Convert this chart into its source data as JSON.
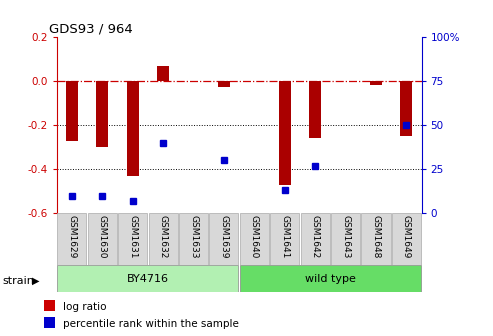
{
  "title": "GDS93 / 964",
  "samples": [
    "GSM1629",
    "GSM1630",
    "GSM1631",
    "GSM1632",
    "GSM1633",
    "GSM1639",
    "GSM1640",
    "GSM1641",
    "GSM1642",
    "GSM1643",
    "GSM1648",
    "GSM1649"
  ],
  "log_ratio": [
    -0.27,
    -0.3,
    -0.43,
    0.07,
    0.0,
    -0.027,
    0.0,
    -0.47,
    -0.26,
    0.0,
    -0.02,
    -0.25
  ],
  "percentile_rank": [
    10,
    10,
    7,
    40,
    0,
    30,
    0,
    13,
    27,
    0,
    0,
    50
  ],
  "strain_groups": [
    {
      "label": "BY4716",
      "start": 0,
      "end": 5,
      "color": "#b2f0b2"
    },
    {
      "label": "wild type",
      "start": 6,
      "end": 11,
      "color": "#66dd66"
    }
  ],
  "bar_color": "#aa0000",
  "dot_color": "#0000cc",
  "ylim_left": [
    -0.6,
    0.2
  ],
  "ylim_right": [
    0,
    100
  ],
  "yticks_left": [
    -0.6,
    -0.4,
    -0.2,
    0.0,
    0.2
  ],
  "yticks_right": [
    0,
    25,
    50,
    75,
    100
  ],
  "ytick_right_labels": [
    "0",
    "25",
    "50",
    "75",
    "100%"
  ],
  "hline_zero_color": "#cc0000",
  "background_color": "#ffffff",
  "legend_log_ratio_color": "#cc0000",
  "legend_pct_color": "#0000cc",
  "bar_width": 0.4
}
